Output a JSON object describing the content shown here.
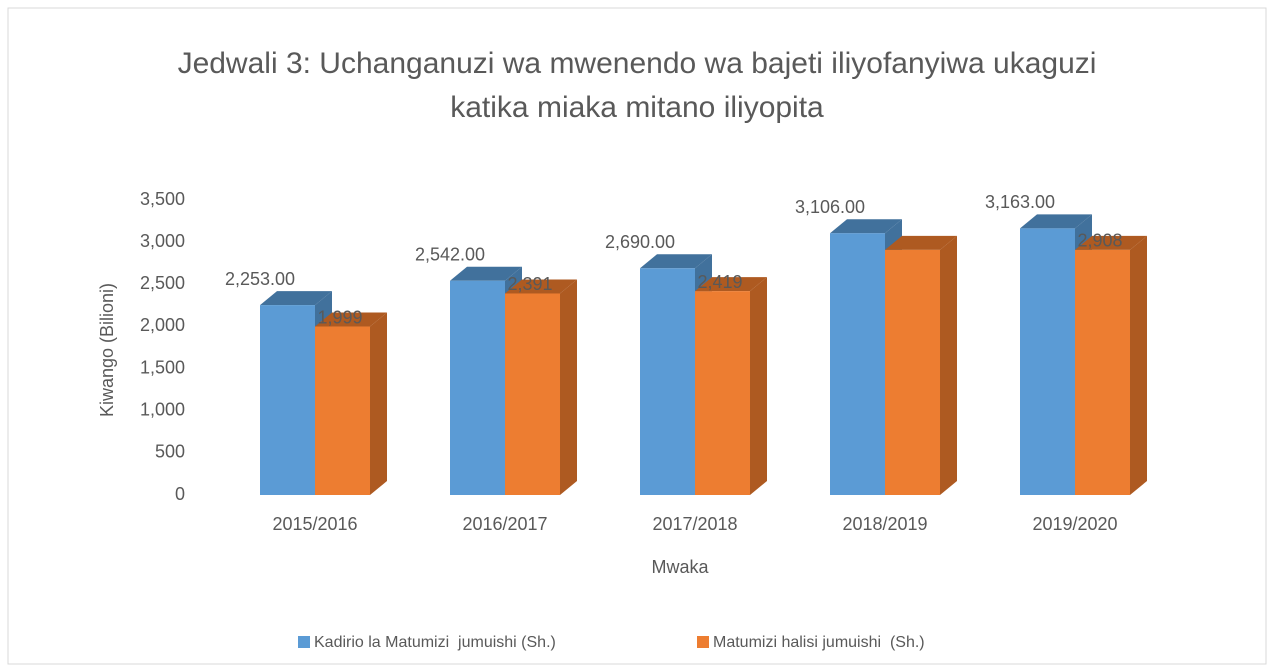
{
  "chart_data": {
    "type": "bar3d",
    "title": "Jedwali 3: Uchanganuzi wa mwenendo wa bajeti iliyofanyiwa ukaguzi katika miaka mitano iliyopita",
    "x_label": "Mwaka",
    "y_label": "Kiwango (Bilioni)",
    "categories": [
      "2015/2016",
      "2016/2017",
      "2017/2018",
      "2018/2019",
      "2019/2020"
    ],
    "series": [
      {
        "name": "Kadirio la Matumizi  jumuishi (Sh.)",
        "color": "#5b9bd5",
        "side": "#41719c",
        "values": [
          2253,
          2542,
          2690,
          3106,
          3163
        ],
        "value_labels": [
          "2,253.00",
          "2,542.00",
          "2,690.00",
          "3,106.00",
          "3,163.00"
        ]
      },
      {
        "name": "Matumizi halisi jumuishi  (Sh.)",
        "color": "#ed7d31",
        "side": "#ae5a21",
        "values": [
          1999,
          2391,
          2419,
          2908,
          2908
        ],
        "value_labels": [
          "1,999",
          "2,391",
          "2,419",
          null,
          "2,908"
        ]
      }
    ],
    "ylim": [
      0,
      3500
    ],
    "yticks": [
      0,
      500,
      {
        "value": 1000,
        "label": "1,000"
      },
      {
        "value": 1500,
        "label": "1,500"
      },
      {
        "value": 2000,
        "label": "2,000"
      },
      {
        "value": 2500,
        "label": "2,500"
      },
      {
        "value": 3000,
        "label": "3,000"
      },
      {
        "value": 3500,
        "label": "3,500"
      }
    ],
    "legend": "bottom"
  }
}
